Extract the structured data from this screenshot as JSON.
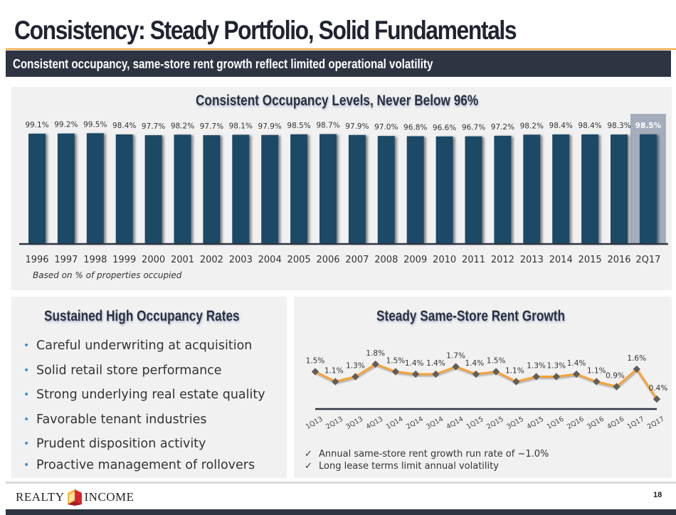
{
  "page": {
    "title": "Consistency: Steady Portfolio, Solid Fundamentals",
    "subtitle": "Consistent occupancy, same-store rent growth reflect limited operational volatility",
    "page_number": "18",
    "logo": {
      "left": "REALTY",
      "right": "INCOME"
    },
    "colors": {
      "accent_orange": "#f5a237",
      "dark_navy": "#2e3442",
      "bar_blue": "#1d4866",
      "highlight": "#a3adbb",
      "panel_bg": "#f1f1f1"
    }
  },
  "occupancy_panel": {
    "note": "Based on % of properties occupied"
  },
  "left_panel": {
    "heading": "Sustained High Occupancy Rates",
    "bullets": [
      "Careful underwriting at acquisition",
      "Solid retail store performance",
      "Strong underlying real estate quality",
      "Favorable tenant industries",
      "Prudent disposition activity",
      "Proactive management of rollovers"
    ]
  },
  "rent_panel": {
    "checks": [
      "Annual same-store rent growth run rate of ~1.0%",
      "Long lease terms limit annual volatility"
    ]
  },
  "chart_data": [
    {
      "type": "bar",
      "title": "Consistent Occupancy Levels, Never Below 96%",
      "xlabel": "",
      "ylabel": "",
      "categories": [
        "1996",
        "1997",
        "1998",
        "1999",
        "2000",
        "2001",
        "2002",
        "2003",
        "2004",
        "2005",
        "2006",
        "2007",
        "2008",
        "2009",
        "2010",
        "2011",
        "2012",
        "2013",
        "2014",
        "2015",
        "2016",
        "2Q17"
      ],
      "values": [
        99.1,
        99.2,
        99.5,
        98.4,
        97.7,
        98.2,
        97.7,
        98.1,
        97.9,
        98.5,
        98.7,
        97.9,
        97.0,
        96.8,
        96.6,
        96.7,
        97.2,
        98.2,
        98.4,
        98.4,
        98.3,
        98.5
      ],
      "labels": [
        "99.1%",
        "99.2%",
        "99.5%",
        "98.4%",
        "97.7%",
        "98.2%",
        "97.7%",
        "98.1%",
        "97.9%",
        "98.5%",
        "98.7%",
        "97.9%",
        "97.0%",
        "96.8%",
        "96.6%",
        "96.7%",
        "97.2%",
        "98.2%",
        "98.4%",
        "98.4%",
        "98.3%",
        "98.5%"
      ],
      "highlight_category": "2Q17",
      "ylim": [
        0,
        100
      ],
      "grid": false,
      "legend": "none"
    },
    {
      "type": "line",
      "title": "Steady Same-Store Rent Growth",
      "xlabel": "",
      "ylabel": "",
      "categories": [
        "1Q13",
        "2Q13",
        "3Q13",
        "4Q13",
        "1Q14",
        "2Q14",
        "3Q14",
        "4Q14",
        "1Q15",
        "2Q15",
        "3Q15",
        "4Q15",
        "1Q16",
        "2Q16",
        "3Q16",
        "4Q16",
        "1Q17",
        "2Q17"
      ],
      "values": [
        1.5,
        1.1,
        1.3,
        1.8,
        1.5,
        1.4,
        1.4,
        1.7,
        1.4,
        1.5,
        1.1,
        1.3,
        1.3,
        1.4,
        1.1,
        0.9,
        1.6,
        0.4
      ],
      "labels": [
        "1.5%",
        "1.1%",
        "1.3%",
        "1.8%",
        "1.5%",
        "1.4%",
        "1.4%",
        "1.7%",
        "1.4%",
        "1.5%",
        "1.1%",
        "1.3%",
        "1.3%",
        "1.4%",
        "1.1%",
        "0.9%",
        "1.6%",
        "0.4%"
      ],
      "marker": "diamond",
      "grid": false,
      "legend": "none"
    }
  ]
}
